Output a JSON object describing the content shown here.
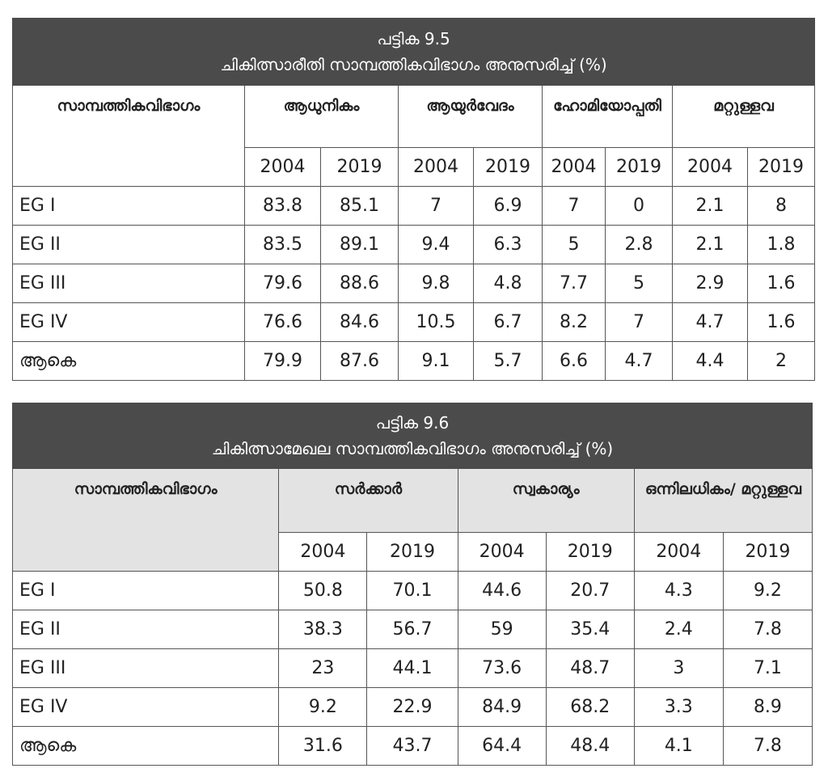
{
  "tables": [
    {
      "title": "പട്ടിക 9.5",
      "subtitle": "ചികിത്സാരീതി സാമ്പത്തികവിഭാഗം അനുസരിച്ച് (%)",
      "row_header": "സാമ്പത്തികവിഭാഗം",
      "groups": [
        "ആധുനികം",
        "ആയുർവേദം",
        "ഹോമിയോപ്പതി",
        "മറ്റുള്ളവ"
      ],
      "years": [
        "2004",
        "2019",
        "2004",
        "2019",
        "2004",
        "2019",
        "2004",
        "2019"
      ],
      "rows": [
        {
          "label": "EG I",
          "cells": [
            "83.8",
            "85.1",
            "7",
            "6.9",
            "7",
            "0",
            "2.1",
            "8"
          ]
        },
        {
          "label": "EG II",
          "cells": [
            "83.5",
            "89.1",
            "9.4",
            "6.3",
            "5",
            "2.8",
            "2.1",
            "1.8"
          ]
        },
        {
          "label": "EG III",
          "cells": [
            "79.6",
            "88.6",
            "9.8",
            "4.8",
            "7.7",
            "5",
            "2.9",
            "1.6"
          ]
        },
        {
          "label": "EG IV",
          "cells": [
            "76.6",
            "84.6",
            "10.5",
            "6.7",
            "8.2",
            "7",
            "4.7",
            "1.6"
          ]
        },
        {
          "label": "ആകെ",
          "cells": [
            "79.9",
            "87.6",
            "9.1",
            "5.7",
            "6.6",
            "4.7",
            "4.4",
            "2"
          ]
        }
      ]
    },
    {
      "title": "പട്ടിക 9.6",
      "subtitle": "ചികിത്സാമേഖല സാമ്പത്തികവിഭാഗം അനുസരിച്ച് (%)",
      "row_header": "സാമ്പത്തികവിഭാഗം",
      "groups": [
        "സർക്കാർ",
        "സ്വകാര്യം",
        "ഒന്നിലധികം/ മറ്റുള്ളവ"
      ],
      "years": [
        "2004",
        "2019",
        "2004",
        "2019",
        "2004",
        "2019"
      ],
      "rows": [
        {
          "label": "EG I",
          "cells": [
            "50.8",
            "70.1",
            "44.6",
            "20.7",
            "4.3",
            "9.2"
          ]
        },
        {
          "label": "EG II",
          "cells": [
            "38.3",
            "56.7",
            "59",
            "35.4",
            "2.4",
            "7.8"
          ]
        },
        {
          "label": "EG III",
          "cells": [
            "23",
            "44.1",
            "73.6",
            "48.7",
            "3",
            "7.1"
          ]
        },
        {
          "label": "EG IV",
          "cells": [
            "9.2",
            "22.9",
            "84.9",
            "68.2",
            "3.3",
            "8.9"
          ]
        },
        {
          "label": "ആകെ",
          "cells": [
            "31.6",
            "43.7",
            "64.4",
            "48.4",
            "4.1",
            "7.8"
          ]
        }
      ]
    }
  ]
}
